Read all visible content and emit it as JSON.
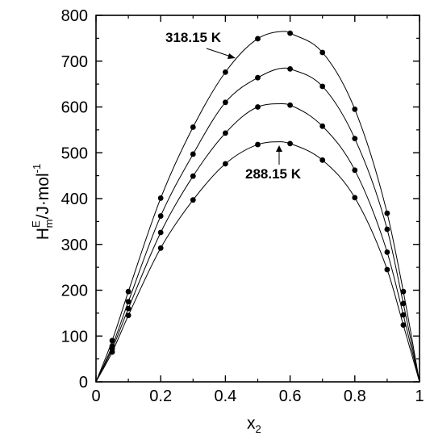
{
  "chart_data": {
    "type": "scatter",
    "xlabel": {
      "main": "x",
      "sub": "2"
    },
    "ylabel": {
      "main": "H",
      "sub": "m",
      "sup": "E",
      "rest": "/J·mol",
      "rest_sup": "-1"
    },
    "xlim": [
      0,
      1
    ],
    "ylim": [
      0,
      800
    ],
    "x_ticks": [
      "0",
      "0.2",
      "0.4",
      "0.6",
      "0.8",
      "1"
    ],
    "y_ticks": [
      "0",
      "100",
      "200",
      "300",
      "400",
      "500",
      "600",
      "700",
      "800"
    ],
    "grid": false,
    "annotations": [
      {
        "text": "318.15 K",
        "points_to_series": 0
      },
      {
        "text": "288.15 K",
        "points_to_series": 3
      }
    ],
    "series": [
      {
        "points": [
          [
            0.05,
            90
          ],
          [
            0.1,
            197
          ],
          [
            0.2,
            401
          ],
          [
            0.3,
            556
          ],
          [
            0.4,
            676
          ],
          [
            0.5,
            749
          ],
          [
            0.6,
            761
          ],
          [
            0.7,
            719
          ],
          [
            0.8,
            595
          ],
          [
            0.9,
            368
          ],
          [
            0.95,
            197
          ]
        ],
        "curve_peak": [
          0.585,
          765
        ]
      },
      {
        "points": [
          [
            0.05,
            78
          ],
          [
            0.1,
            175
          ],
          [
            0.2,
            362
          ],
          [
            0.3,
            497
          ],
          [
            0.4,
            610
          ],
          [
            0.5,
            664
          ],
          [
            0.6,
            683
          ],
          [
            0.7,
            645
          ],
          [
            0.8,
            531
          ],
          [
            0.9,
            333
          ],
          [
            0.95,
            171
          ]
        ],
        "curve_peak": [
          0.585,
          685
        ]
      },
      {
        "points": [
          [
            0.05,
            72
          ],
          [
            0.1,
            160
          ],
          [
            0.2,
            326
          ],
          [
            0.3,
            449
          ],
          [
            0.4,
            543
          ],
          [
            0.5,
            600
          ],
          [
            0.6,
            604
          ],
          [
            0.7,
            558
          ],
          [
            0.8,
            462
          ],
          [
            0.9,
            283
          ],
          [
            0.95,
            146
          ]
        ],
        "curve_peak": [
          0.575,
          607
        ]
      },
      {
        "points": [
          [
            0.05,
            65
          ],
          [
            0.1,
            145
          ],
          [
            0.2,
            292
          ],
          [
            0.3,
            397
          ],
          [
            0.4,
            476
          ],
          [
            0.5,
            518
          ],
          [
            0.6,
            520
          ],
          [
            0.7,
            484
          ],
          [
            0.8,
            402
          ],
          [
            0.9,
            245
          ],
          [
            0.95,
            124
          ]
        ],
        "curve_peak": [
          0.57,
          524
        ]
      }
    ]
  }
}
